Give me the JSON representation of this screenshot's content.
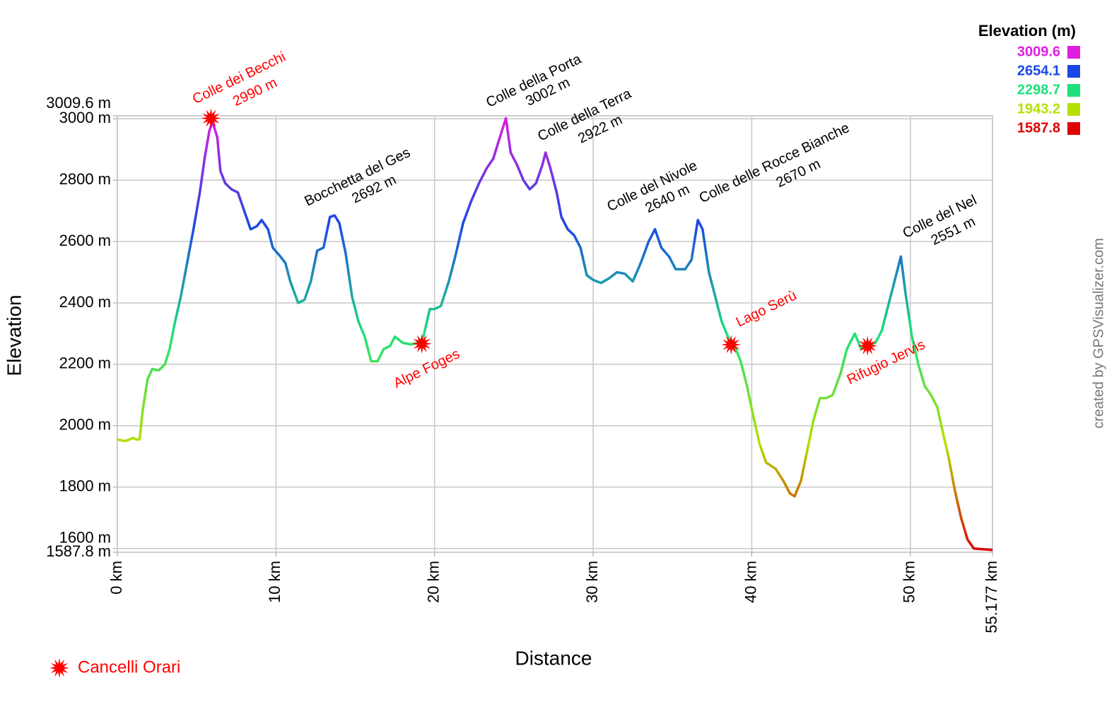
{
  "chart_data": {
    "type": "line",
    "xlabel": "Distance",
    "ylabel": "Elevation",
    "credit": "created by GPSVisualizer.com",
    "xlim": [
      0,
      55.177
    ],
    "ylim": [
      1587.8,
      3009.6
    ],
    "xticks": [
      {
        "value": 0,
        "label": "0 km"
      },
      {
        "value": 10,
        "label": "10 km"
      },
      {
        "value": 20,
        "label": "20 km"
      },
      {
        "value": 30,
        "label": "30 km"
      },
      {
        "value": 40,
        "label": "40 km"
      },
      {
        "value": 50,
        "label": "50 km"
      },
      {
        "value": 55.177,
        "label": "55.177 km"
      }
    ],
    "yticks": [
      {
        "value": 1587.8,
        "label": "1587.8 m"
      },
      {
        "value": 1600,
        "label": "1600 m"
      },
      {
        "value": 1800,
        "label": "1800 m"
      },
      {
        "value": 2000,
        "label": "2000 m"
      },
      {
        "value": 2200,
        "label": "2200 m"
      },
      {
        "value": 2400,
        "label": "2400 m"
      },
      {
        "value": 2600,
        "label": "2600 m"
      },
      {
        "value": 2800,
        "label": "2800 m"
      },
      {
        "value": 3000,
        "label": "3000 m"
      },
      {
        "value": 3009.6,
        "label": "3009.6 m"
      }
    ],
    "grid": true,
    "color_scale_title": "Elevation (m)",
    "color_scale": [
      {
        "value": 3009.6,
        "color": "#e01ee0"
      },
      {
        "value": 2654.1,
        "color": "#1a48e6"
      },
      {
        "value": 2298.7,
        "color": "#1ee07a"
      },
      {
        "value": 1943.2,
        "color": "#b4e000"
      },
      {
        "value": 1587.8,
        "color": "#e00000"
      }
    ],
    "x": [
      0,
      0.5,
      1.0,
      1.2,
      1.4,
      1.6,
      1.9,
      2.2,
      2.6,
      3.0,
      3.3,
      3.6,
      4.0,
      4.4,
      4.8,
      5.2,
      5.5,
      5.8,
      6.0,
      6.3,
      6.5,
      6.8,
      7.2,
      7.6,
      8.0,
      8.4,
      8.8,
      9.1,
      9.5,
      9.8,
      10.3,
      10.6,
      10.9,
      11.4,
      11.8,
      12.2,
      12.6,
      13.0,
      13.4,
      13.7,
      14.0,
      14.4,
      14.8,
      15.2,
      15.6,
      16.0,
      16.4,
      16.8,
      17.2,
      17.5,
      18.0,
      18.5,
      19.0,
      19.3,
      19.7,
      20.0,
      20.4,
      20.9,
      21.3,
      21.8,
      22.3,
      22.8,
      23.3,
      23.7,
      24.0,
      24.5,
      24.8,
      25.2,
      25.6,
      26.0,
      26.4,
      26.8,
      27.0,
      27.3,
      27.7,
      28.0,
      28.4,
      28.8,
      29.2,
      29.6,
      30.0,
      30.5,
      31.0,
      31.5,
      32.0,
      32.5,
      33.0,
      33.5,
      33.9,
      34.3,
      34.8,
      35.2,
      35.8,
      36.2,
      36.6,
      36.9,
      37.3,
      37.7,
      38.1,
      38.5,
      39.0,
      39.3,
      39.7,
      40.1,
      40.5,
      40.9,
      41.5,
      42.0,
      42.4,
      42.7,
      43.1,
      43.5,
      43.9,
      44.3,
      44.7,
      45.1,
      45.6,
      46.0,
      46.5,
      46.9,
      47.3,
      47.8,
      48.2,
      48.6,
      49.0,
      49.4,
      49.7,
      50.1,
      50.5,
      50.9,
      51.3,
      51.7,
      52.0,
      52.4,
      52.8,
      53.2,
      53.6,
      54.0,
      54.5,
      55.177
    ],
    "values": [
      1955,
      1950,
      1960,
      1955,
      1955,
      2050,
      2150,
      2185,
      2180,
      2200,
      2250,
      2330,
      2420,
      2530,
      2640,
      2760,
      2870,
      2960,
      2990,
      2940,
      2830,
      2790,
      2770,
      2760,
      2700,
      2640,
      2650,
      2670,
      2640,
      2580,
      2550,
      2530,
      2470,
      2400,
      2410,
      2470,
      2570,
      2580,
      2680,
      2685,
      2660,
      2560,
      2420,
      2340,
      2290,
      2210,
      2210,
      2250,
      2260,
      2290,
      2270,
      2265,
      2270,
      2290,
      2380,
      2380,
      2390,
      2470,
      2550,
      2660,
      2730,
      2790,
      2840,
      2870,
      2920,
      3002,
      2890,
      2850,
      2800,
      2770,
      2790,
      2850,
      2890,
      2840,
      2760,
      2680,
      2640,
      2620,
      2580,
      2490,
      2475,
      2465,
      2480,
      2500,
      2495,
      2470,
      2530,
      2600,
      2640,
      2580,
      2550,
      2510,
      2510,
      2540,
      2670,
      2640,
      2500,
      2420,
      2340,
      2290,
      2250,
      2210,
      2130,
      2030,
      1940,
      1880,
      1860,
      1820,
      1780,
      1770,
      1820,
      1920,
      2020,
      2090,
      2090,
      2100,
      2170,
      2250,
      2300,
      2250,
      2260,
      2270,
      2310,
      2390,
      2470,
      2551,
      2430,
      2290,
      2200,
      2130,
      2100,
      2060,
      1990,
      1900,
      1790,
      1700,
      1630,
      1600,
      1598,
      1595
    ],
    "peaks": [
      {
        "text": "Colle dei Becchi",
        "x": 5.9,
        "value": 2990,
        "label": "2990 m",
        "color": "#ff0000",
        "marker": "star"
      },
      {
        "text": "Bocchetta del Ges",
        "x": 13.5,
        "value": 2692,
        "label": "2692 m",
        "color": "#000000"
      },
      {
        "text": "Colle della Porta",
        "x": 24.5,
        "value": 3002,
        "label": "3002 m",
        "color": "#000000"
      },
      {
        "text": "Colle della Terra",
        "x": 27.0,
        "value": 2922,
        "label": "2922 m",
        "color": "#000000"
      },
      {
        "text": "Colle del Nivole",
        "x": 34.0,
        "value": 2640,
        "label": "2640 m",
        "color": "#000000"
      },
      {
        "text": "Colle delle Rocce Bianche",
        "x": 36.6,
        "value": 2670,
        "label": "2670 m",
        "color": "#000000"
      },
      {
        "text": "Colle del Nel",
        "x": 49.3,
        "value": 2551,
        "label": "2551 m",
        "color": "#000000"
      }
    ],
    "checkpoints": [
      {
        "text": "Alpe Foges",
        "x": 19.2,
        "y": 2267,
        "color": "#ff0000"
      },
      {
        "text": "Lago Serù",
        "x": 38.7,
        "y": 2264,
        "color": "#ff0000"
      },
      {
        "text": "Rifugio Jervis",
        "x": 47.3,
        "y": 2260,
        "color": "#ff0000"
      }
    ],
    "marker_legend": {
      "label": "Cancelli Orari",
      "color": "#ff0000"
    }
  }
}
